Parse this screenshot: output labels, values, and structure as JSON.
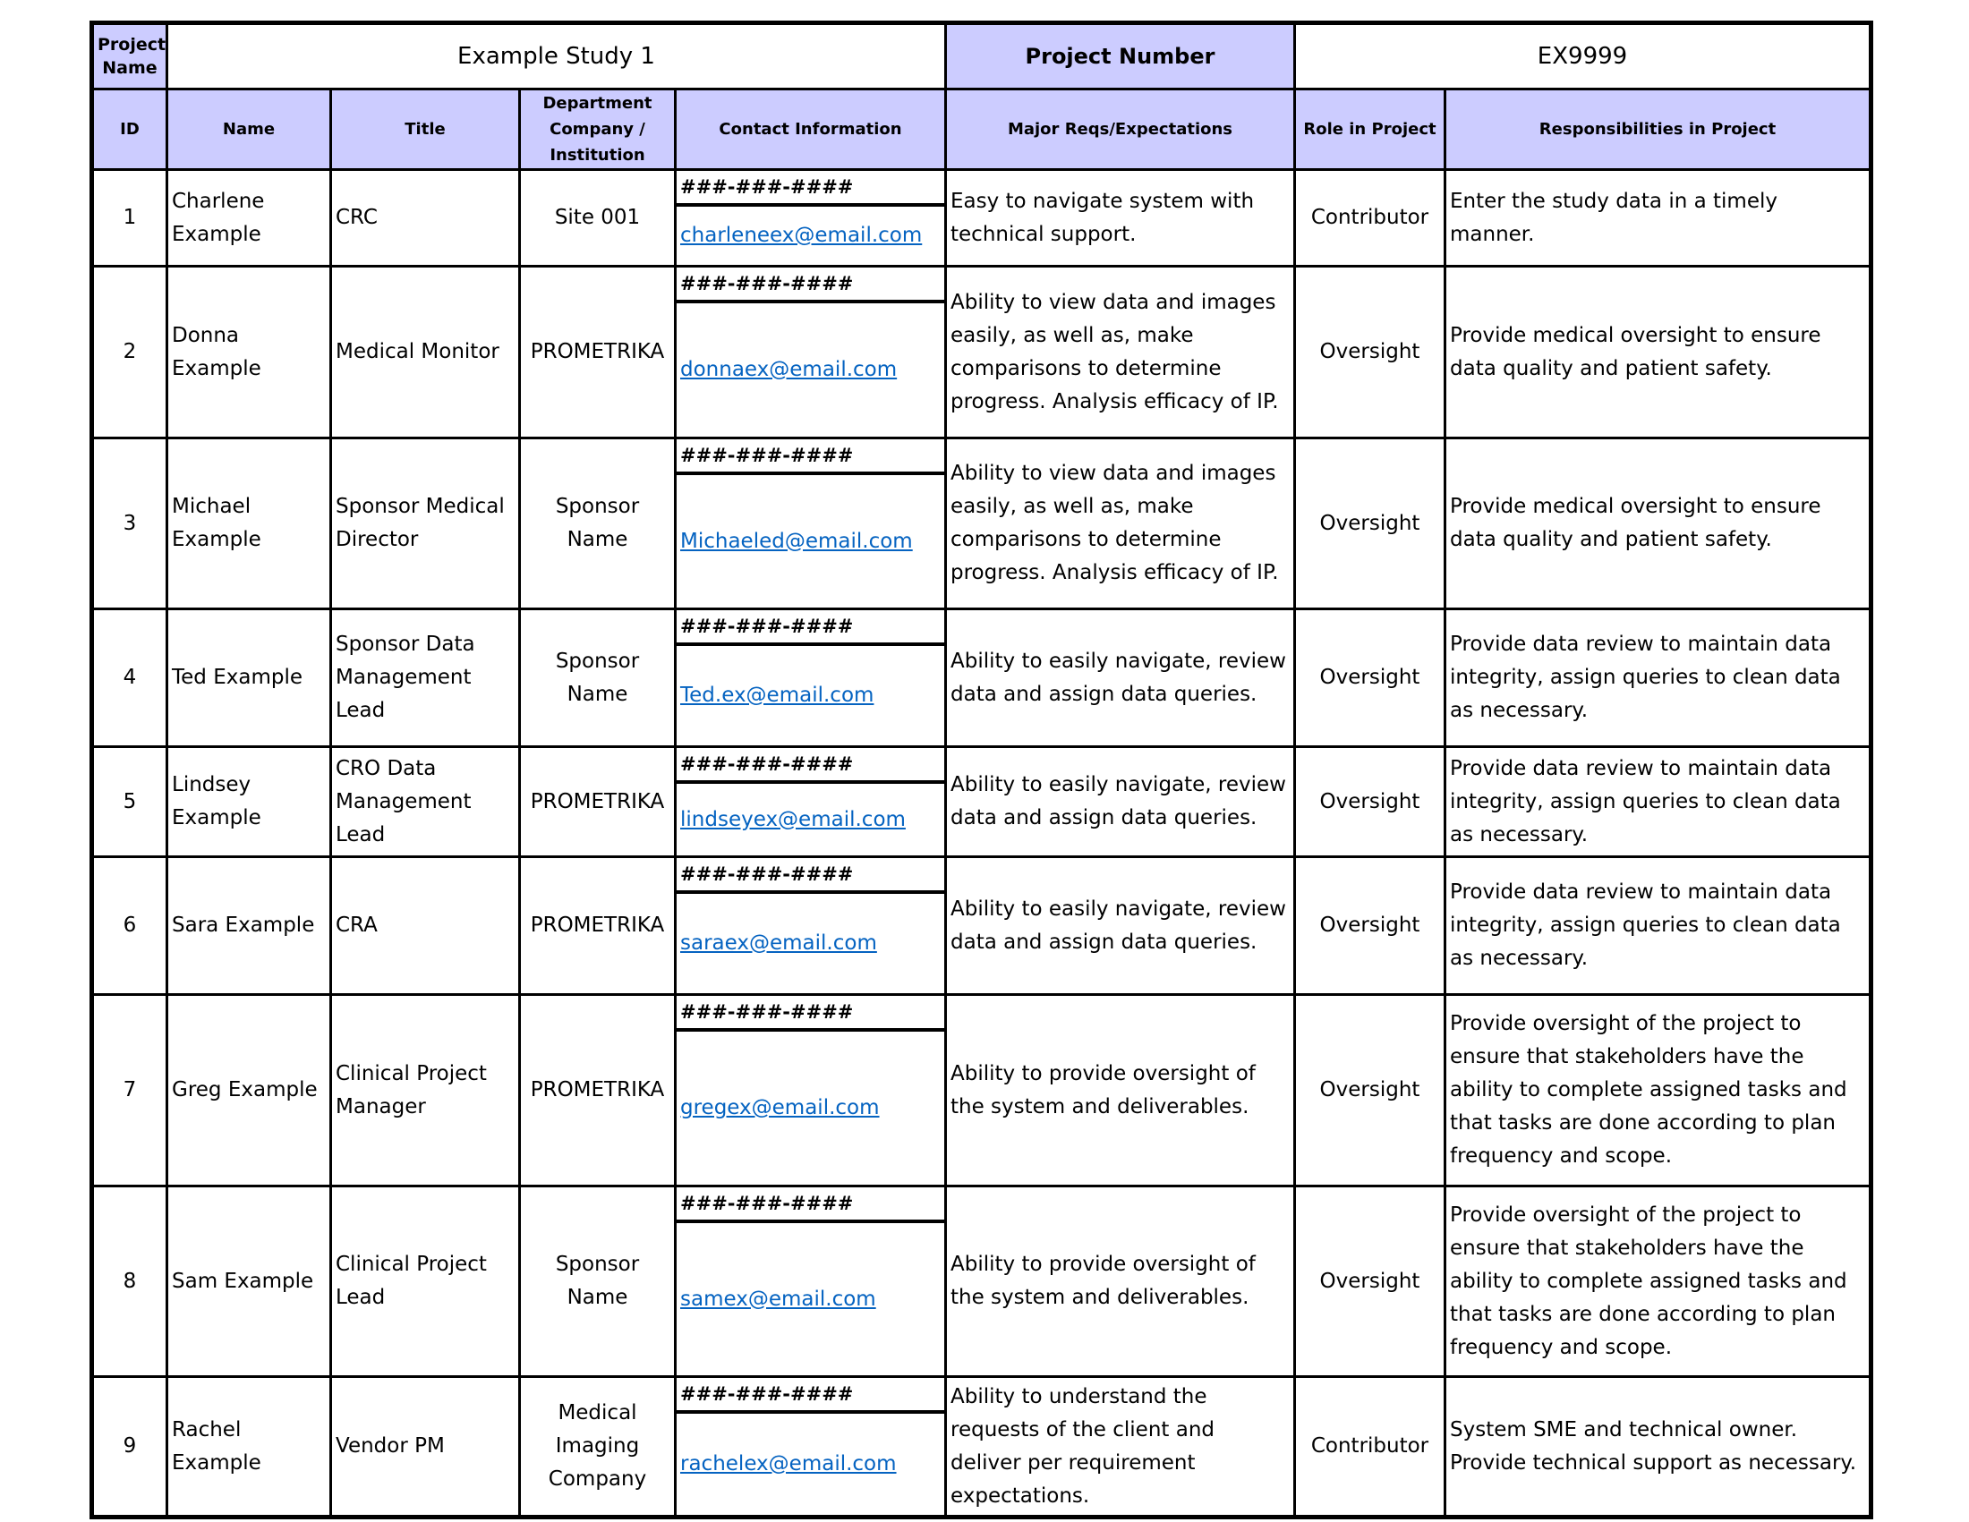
{
  "header": {
    "project_name_label": "Project Name",
    "project_name": "Example Study 1",
    "project_number_label": "Project Number",
    "project_number": "EX9999"
  },
  "table": {
    "columns": [
      "ID",
      "Name",
      "Title",
      "Department Company / Institution",
      "Contact Information",
      "Major Reqs/Expectations",
      "Role in Project",
      "Responsibilities in Project"
    ],
    "rows": [
      [
        "1",
        "Charlene Example",
        "CRC",
        "Site 001",
        "###-###-####",
        "charleneex@email.com",
        "Easy to navigate system with technical support.",
        "Contributor",
        "Enter the study data in a timely manner."
      ],
      [
        "2",
        "Donna Example",
        "Medical Monitor",
        "PROMETRIKA",
        "###-###-####",
        "donnaex@email.com",
        "Ability to view data and images easily, as well as, make comparisons to determine progress. Analysis efficacy of IP.",
        "Oversight",
        "Provide medical oversight to ensure data quality and patient safety."
      ],
      [
        "3",
        "Michael Example",
        "Sponsor Medical Director",
        "Sponsor Name",
        "###-###-####",
        "Michaeled@email.com",
        "Ability to view data and images easily, as well as, make comparisons to determine progress. Analysis efficacy of IP.",
        "Oversight",
        "Provide medical oversight to ensure data quality and patient safety."
      ],
      [
        "4",
        "Ted Example",
        "Sponsor Data Management Lead",
        "Sponsor Name",
        "###-###-####",
        "Ted.ex@email.com",
        "Ability to easily navigate, review data and assign data queries.",
        "Oversight",
        "Provide data review to maintain data integrity, assign queries to clean data as necessary."
      ],
      [
        "5",
        "Lindsey Example",
        "CRO Data Management Lead",
        "PROMETRIKA",
        "###-###-####",
        "lindseyex@email.com",
        "Ability to easily navigate, review data and assign data queries.",
        "Oversight",
        "Provide data review to maintain data integrity, assign queries to clean data as necessary."
      ],
      [
        "6",
        "Sara Example",
        "CRA",
        "PROMETRIKA",
        "###-###-####",
        "saraex@email.com",
        "Ability to easily navigate, review data and assign data queries.",
        "Oversight",
        "Provide data review to maintain data integrity, assign queries to clean data as necessary."
      ],
      [
        "7",
        "Greg Example",
        "Clinical Project Manager",
        "PROMETRIKA",
        "###-###-####",
        "gregex@email.com",
        "Ability to provide oversight of the system and deliverables.",
        "Oversight",
        "Provide oversight of the project to ensure that stakeholders have the ability to complete assigned tasks and that tasks are done according to plan frequency and scope."
      ],
      [
        "8",
        "Sam Example",
        "Clinical Project Lead",
        "Sponsor Name",
        "###-###-####",
        "samex@email.com",
        "Ability to provide oversight of the system and deliverables.",
        "Oversight",
        "Provide oversight of the project to ensure that stakeholders have the ability to complete assigned tasks and that tasks are done according to plan frequency and scope."
      ],
      [
        "9",
        "Rachel Example",
        "Vendor PM",
        "Medical Imaging Company",
        "###-###-####",
        "rachelex@email.com",
        "Ability to understand the requests of the client and deliver per requirement expectations.",
        "Contributor",
        "System SME and technical owner. Provide technical support as necessary."
      ]
    ]
  }
}
